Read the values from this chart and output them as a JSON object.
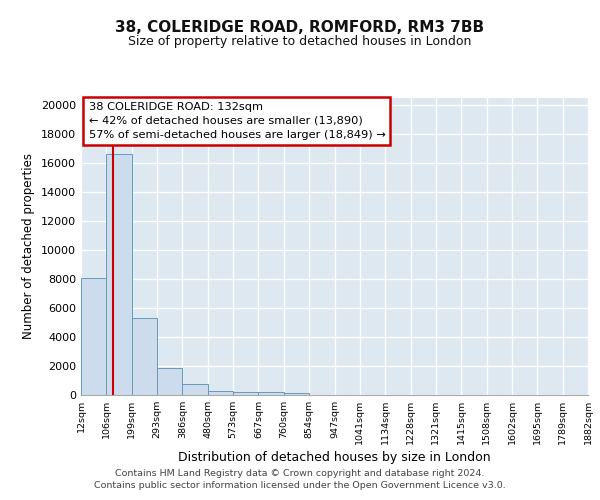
{
  "title1": "38, COLERIDGE ROAD, ROMFORD, RM3 7BB",
  "title2": "Size of property relative to detached houses in London",
  "xlabel": "Distribution of detached houses by size in London",
  "ylabel": "Number of detached properties",
  "bin_labels": [
    "12sqm",
    "106sqm",
    "199sqm",
    "293sqm",
    "386sqm",
    "480sqm",
    "573sqm",
    "667sqm",
    "760sqm",
    "854sqm",
    "947sqm",
    "1041sqm",
    "1134sqm",
    "1228sqm",
    "1321sqm",
    "1415sqm",
    "1508sqm",
    "1602sqm",
    "1695sqm",
    "1789sqm",
    "1882sqm"
  ],
  "bar_heights": [
    8050,
    16600,
    5300,
    1850,
    750,
    310,
    210,
    200,
    160,
    0,
    0,
    0,
    0,
    0,
    0,
    0,
    0,
    0,
    0,
    0
  ],
  "bar_color": "#ccdcec",
  "bar_edge_color": "#6699bb",
  "plot_bg_color": "#dde8f0",
  "fig_bg_color": "#ffffff",
  "grid_color": "#ffffff",
  "red_line_x": 1.28,
  "annotation_text": "38 COLERIDGE ROAD: 132sqm\n← 42% of detached houses are smaller (13,890)\n57% of semi-detached houses are larger (18,849) →",
  "annotation_box_color": "#ffffff",
  "annotation_border_color": "#cc0000",
  "footer1": "Contains HM Land Registry data © Crown copyright and database right 2024.",
  "footer2": "Contains public sector information licensed under the Open Government Licence v3.0.",
  "ylim": [
    0,
    20500
  ],
  "yticks": [
    0,
    2000,
    4000,
    6000,
    8000,
    10000,
    12000,
    14000,
    16000,
    18000,
    20000
  ]
}
